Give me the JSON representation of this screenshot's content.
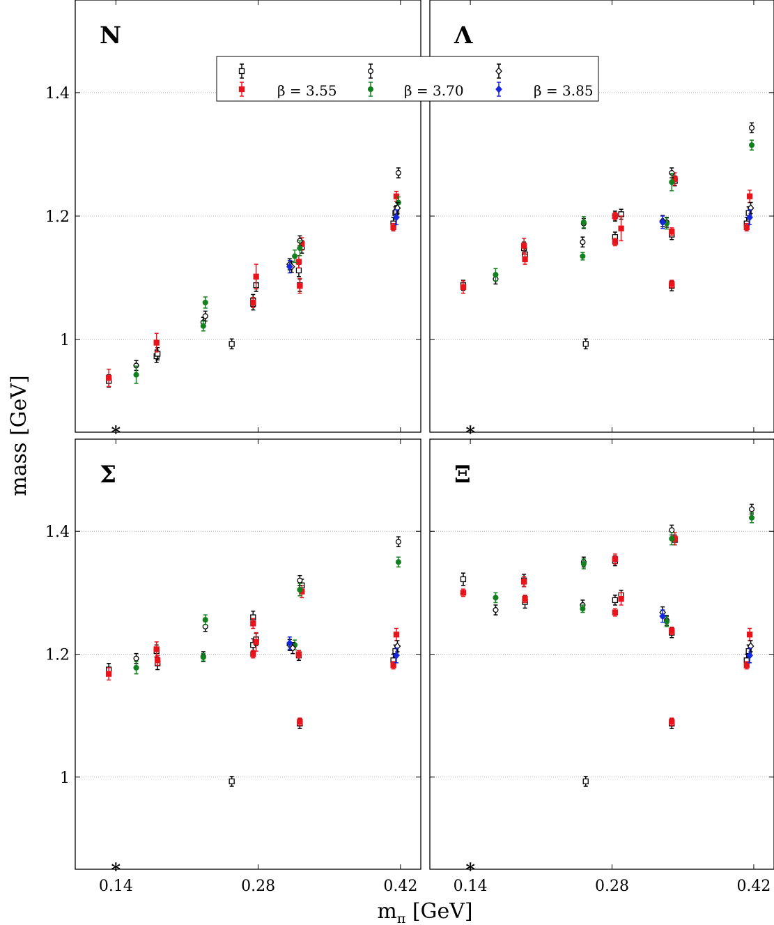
{
  "figure": {
    "xlabel_main": "m",
    "xlabel_sub": "π",
    "xlabel_unit": " [GeV]",
    "ylabel": "mass [GeV]"
  },
  "colors": {
    "beta_3_55": "#e8141c",
    "beta_3_70": "#12801e",
    "beta_3_85": "#1528e0",
    "open": "#000000"
  },
  "legend": [
    {
      "beta_label": "β = 3.55",
      "open_marker": "square",
      "filled_marker": "square",
      "color": "#e8141c"
    },
    {
      "beta_label": "β = 3.70",
      "open_marker": "circle",
      "filled_marker": "circle",
      "color": "#12801e"
    },
    {
      "beta_label": "β = 3.85",
      "open_marker": "diamond",
      "filled_marker": "diamond",
      "color": "#1528e0"
    }
  ],
  "star_marker": "*",
  "chart_data": [
    {
      "type": "scatter",
      "title": "N",
      "xlim": [
        0.1,
        0.44
      ],
      "ylim": [
        0.85,
        1.55
      ],
      "xticks": [
        "0.14",
        "0.28",
        "0.42"
      ],
      "yticks": [
        "1",
        "1.2",
        "1.4"
      ],
      "star_x": 0.14,
      "series": [
        {
          "beta": "3.55",
          "kind": "open",
          "marker": "square",
          "points": [
            [
              0.133,
              0.933,
              0.01
            ],
            [
              0.18,
              0.973,
              0.01
            ],
            [
              0.181,
              0.977,
              0.01
            ],
            [
              0.254,
              0.993,
              0.008
            ],
            [
              0.275,
              1.063,
              0.01
            ],
            [
              0.275,
              1.058,
              0.01
            ],
            [
              0.278,
              1.088,
              0.01
            ],
            [
              0.32,
              1.112,
              0.01
            ],
            [
              0.321,
              1.088,
              0.01
            ],
            [
              0.323,
              1.15,
              0.01
            ],
            [
              0.413,
              1.188,
              0.01
            ],
            [
              0.415,
              1.205,
              0.01
            ],
            [
              0.416,
              1.207,
              0.01
            ]
          ]
        },
        {
          "beta": "3.55",
          "kind": "filled",
          "marker": "square",
          "points": [
            [
              0.133,
              0.938,
              0.014
            ],
            [
              0.18,
              0.995,
              0.015
            ],
            [
              0.275,
              1.06,
              0.008
            ],
            [
              0.278,
              1.102,
              0.02
            ],
            [
              0.32,
              1.126,
              0.01
            ],
            [
              0.321,
              1.087,
              0.012
            ],
            [
              0.323,
              1.155,
              0.01
            ],
            [
              0.413,
              1.182,
              0.006
            ],
            [
              0.416,
              1.232,
              0.008
            ]
          ]
        },
        {
          "beta": "3.70",
          "kind": "open",
          "marker": "circle",
          "points": [
            [
              0.16,
              0.958,
              0.008
            ],
            [
              0.226,
              1.028,
              0.008
            ],
            [
              0.228,
              1.038,
              0.008
            ],
            [
              0.321,
              1.16,
              0.008
            ],
            [
              0.418,
              1.27,
              0.008
            ]
          ]
        },
        {
          "beta": "3.70",
          "kind": "filled",
          "marker": "circle",
          "points": [
            [
              0.16,
              0.943,
              0.014
            ],
            [
              0.226,
              1.022,
              0.008
            ],
            [
              0.228,
              1.06,
              0.009
            ],
            [
              0.316,
              1.135,
              0.01
            ],
            [
              0.321,
              1.148,
              0.012
            ],
            [
              0.418,
              1.222,
              0.009
            ]
          ]
        },
        {
          "beta": "3.85",
          "kind": "open",
          "marker": "diamond",
          "points": [
            [
              0.311,
              1.122,
              0.009
            ],
            [
              0.313,
              1.118,
              0.009
            ],
            [
              0.417,
              1.213,
              0.009
            ]
          ]
        },
        {
          "beta": "3.85",
          "kind": "filled",
          "marker": "diamond",
          "points": [
            [
              0.311,
              1.118,
              0.01
            ],
            [
              0.416,
              1.198,
              0.012
            ]
          ]
        }
      ]
    },
    {
      "type": "scatter",
      "title": "Λ",
      "xlim": [
        0.1,
        0.44
      ],
      "ylim": [
        0.85,
        1.55
      ],
      "xticks": [
        "0.14",
        "0.28",
        "0.42"
      ],
      "yticks": [
        "1",
        "1.2",
        "1.4"
      ],
      "star_x": 0.14,
      "series": [
        {
          "beta": "3.55",
          "kind": "open",
          "marker": "square",
          "points": [
            [
              0.133,
              1.088,
              0.008
            ],
            [
              0.193,
              1.148,
              0.01
            ],
            [
              0.194,
              1.138,
              0.01
            ],
            [
              0.254,
              0.993,
              0.008
            ],
            [
              0.283,
              1.2,
              0.008
            ],
            [
              0.283,
              1.166,
              0.008
            ],
            [
              0.289,
              1.203,
              0.008
            ],
            [
              0.339,
              1.17,
              0.008
            ],
            [
              0.339,
              1.087,
              0.008
            ],
            [
              0.342,
              1.257,
              0.008
            ],
            [
              0.413,
              1.188,
              0.01
            ],
            [
              0.415,
              1.205,
              0.01
            ]
          ]
        },
        {
          "beta": "3.55",
          "kind": "filled",
          "marker": "square",
          "points": [
            [
              0.133,
              1.085,
              0.01
            ],
            [
              0.193,
              1.152,
              0.012
            ],
            [
              0.194,
              1.13,
              0.008
            ],
            [
              0.283,
              1.158,
              0.006
            ],
            [
              0.283,
              1.2,
              0.006
            ],
            [
              0.289,
              1.18,
              0.02
            ],
            [
              0.339,
              1.175,
              0.006
            ],
            [
              0.339,
              1.09,
              0.006
            ],
            [
              0.342,
              1.26,
              0.01
            ],
            [
              0.413,
              1.182,
              0.006
            ],
            [
              0.416,
              1.232,
              0.01
            ]
          ]
        },
        {
          "beta": "3.70",
          "kind": "open",
          "marker": "circle",
          "points": [
            [
              0.165,
              1.098,
              0.008
            ],
            [
              0.251,
              1.158,
              0.008
            ],
            [
              0.252,
              1.188,
              0.008
            ],
            [
              0.334,
              1.19,
              0.008
            ],
            [
              0.339,
              1.27,
              0.008
            ],
            [
              0.418,
              1.343,
              0.008
            ]
          ]
        },
        {
          "beta": "3.70",
          "kind": "filled",
          "marker": "circle",
          "points": [
            [
              0.165,
              1.105,
              0.01
            ],
            [
              0.251,
              1.135,
              0.006
            ],
            [
              0.252,
              1.19,
              0.009
            ],
            [
              0.334,
              1.188,
              0.009
            ],
            [
              0.339,
              1.255,
              0.014
            ],
            [
              0.418,
              1.315,
              0.008
            ]
          ]
        },
        {
          "beta": "3.85",
          "kind": "open",
          "marker": "diamond",
          "points": [
            [
              0.33,
              1.192,
              0.009
            ],
            [
              0.417,
              1.213,
              0.009
            ]
          ]
        },
        {
          "beta": "3.85",
          "kind": "filled",
          "marker": "diamond",
          "points": [
            [
              0.33,
              1.19,
              0.01
            ],
            [
              0.416,
              1.198,
              0.012
            ]
          ]
        }
      ]
    },
    {
      "type": "scatter",
      "title": "Σ",
      "xlim": [
        0.1,
        0.44
      ],
      "ylim": [
        0.85,
        1.55
      ],
      "xticks": [
        "0.14",
        "0.28",
        "0.42"
      ],
      "yticks": [
        "1",
        "1.2",
        "1.4"
      ],
      "star_x": 0.14,
      "series": [
        {
          "beta": "3.55",
          "kind": "open",
          "marker": "square",
          "points": [
            [
              0.133,
              1.175,
              0.01
            ],
            [
              0.18,
              1.205,
              0.01
            ],
            [
              0.181,
              1.185,
              0.01
            ],
            [
              0.254,
              0.993,
              0.008
            ],
            [
              0.275,
              1.215,
              0.01
            ],
            [
              0.275,
              1.26,
              0.01
            ],
            [
              0.278,
              1.224,
              0.01
            ],
            [
              0.32,
              1.198,
              0.008
            ],
            [
              0.321,
              1.087,
              0.008
            ],
            [
              0.323,
              1.312,
              0.01
            ],
            [
              0.413,
              1.19,
              0.01
            ],
            [
              0.415,
              1.205,
              0.01
            ]
          ]
        },
        {
          "beta": "3.55",
          "kind": "filled",
          "marker": "square",
          "points": [
            [
              0.133,
              1.168,
              0.01
            ],
            [
              0.18,
              1.208,
              0.012
            ],
            [
              0.181,
              1.19,
              0.008
            ],
            [
              0.275,
              1.2,
              0.006
            ],
            [
              0.275,
              1.25,
              0.008
            ],
            [
              0.278,
              1.22,
              0.015
            ],
            [
              0.32,
              1.2,
              0.006
            ],
            [
              0.321,
              1.09,
              0.006
            ],
            [
              0.323,
              1.302,
              0.01
            ],
            [
              0.413,
              1.182,
              0.006
            ],
            [
              0.416,
              1.232,
              0.01
            ]
          ]
        },
        {
          "beta": "3.70",
          "kind": "open",
          "marker": "circle",
          "points": [
            [
              0.16,
              1.193,
              0.008
            ],
            [
              0.226,
              1.196,
              0.008
            ],
            [
              0.228,
              1.245,
              0.008
            ],
            [
              0.321,
              1.32,
              0.008
            ],
            [
              0.418,
              1.383,
              0.008
            ]
          ]
        },
        {
          "beta": "3.70",
          "kind": "filled",
          "marker": "circle",
          "points": [
            [
              0.16,
              1.178,
              0.01
            ],
            [
              0.226,
              1.195,
              0.006
            ],
            [
              0.228,
              1.256,
              0.008
            ],
            [
              0.316,
              1.215,
              0.008
            ],
            [
              0.321,
              1.305,
              0.01
            ],
            [
              0.418,
              1.35,
              0.008
            ]
          ]
        },
        {
          "beta": "3.85",
          "kind": "open",
          "marker": "diamond",
          "points": [
            [
              0.311,
              1.215,
              0.009
            ],
            [
              0.314,
              1.21,
              0.009
            ],
            [
              0.417,
              1.213,
              0.009
            ]
          ]
        },
        {
          "beta": "3.85",
          "kind": "filled",
          "marker": "diamond",
          "points": [
            [
              0.311,
              1.218,
              0.01
            ],
            [
              0.416,
              1.198,
              0.012
            ]
          ]
        }
      ]
    },
    {
      "type": "scatter",
      "title": "Ξ",
      "xlim": [
        0.1,
        0.44
      ],
      "ylim": [
        0.85,
        1.55
      ],
      "xticks": [
        "0.14",
        "0.28",
        "0.42"
      ],
      "yticks": [
        "1",
        "1.2",
        "1.4"
      ],
      "star_x": 0.14,
      "series": [
        {
          "beta": "3.55",
          "kind": "open",
          "marker": "square",
          "points": [
            [
              0.133,
              1.322,
              0.01
            ],
            [
              0.193,
              1.32,
              0.01
            ],
            [
              0.194,
              1.285,
              0.01
            ],
            [
              0.254,
              0.993,
              0.008
            ],
            [
              0.283,
              1.352,
              0.008
            ],
            [
              0.283,
              1.288,
              0.008
            ],
            [
              0.289,
              1.296,
              0.008
            ],
            [
              0.339,
              1.235,
              0.008
            ],
            [
              0.339,
              1.087,
              0.008
            ],
            [
              0.342,
              1.386,
              0.008
            ],
            [
              0.413,
              1.19,
              0.01
            ],
            [
              0.415,
              1.205,
              0.01
            ]
          ]
        },
        {
          "beta": "3.55",
          "kind": "filled",
          "marker": "square",
          "points": [
            [
              0.133,
              1.3,
              0.006
            ],
            [
              0.193,
              1.318,
              0.008
            ],
            [
              0.194,
              1.29,
              0.006
            ],
            [
              0.283,
              1.268,
              0.006
            ],
            [
              0.283,
              1.355,
              0.008
            ],
            [
              0.289,
              1.29,
              0.01
            ],
            [
              0.339,
              1.238,
              0.006
            ],
            [
              0.339,
              1.09,
              0.006
            ],
            [
              0.342,
              1.388,
              0.01
            ],
            [
              0.413,
              1.182,
              0.006
            ],
            [
              0.416,
              1.232,
              0.01
            ]
          ]
        },
        {
          "beta": "3.70",
          "kind": "open",
          "marker": "circle",
          "points": [
            [
              0.165,
              1.272,
              0.008
            ],
            [
              0.251,
              1.28,
              0.008
            ],
            [
              0.252,
              1.35,
              0.008
            ],
            [
              0.334,
              1.255,
              0.008
            ],
            [
              0.339,
              1.402,
              0.008
            ],
            [
              0.418,
              1.436,
              0.008
            ]
          ]
        },
        {
          "beta": "3.70",
          "kind": "filled",
          "marker": "circle",
          "points": [
            [
              0.165,
              1.292,
              0.008
            ],
            [
              0.251,
              1.274,
              0.006
            ],
            [
              0.252,
              1.347,
              0.008
            ],
            [
              0.334,
              1.253,
              0.008
            ],
            [
              0.339,
              1.388,
              0.01
            ],
            [
              0.418,
              1.422,
              0.008
            ]
          ]
        },
        {
          "beta": "3.85",
          "kind": "open",
          "marker": "diamond",
          "points": [
            [
              0.33,
              1.268,
              0.009
            ],
            [
              0.417,
              1.213,
              0.009
            ]
          ]
        },
        {
          "beta": "3.85",
          "kind": "filled",
          "marker": "diamond",
          "points": [
            [
              0.33,
              1.262,
              0.01
            ],
            [
              0.416,
              1.198,
              0.012
            ]
          ]
        }
      ]
    }
  ]
}
